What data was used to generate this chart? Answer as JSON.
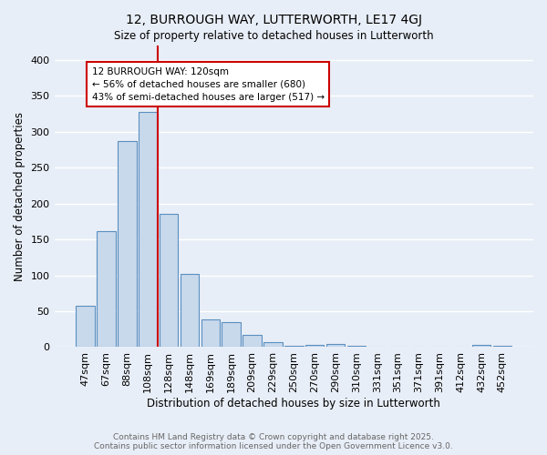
{
  "title": "12, BURROUGH WAY, LUTTERWORTH, LE17 4GJ",
  "subtitle": "Size of property relative to detached houses in Lutterworth",
  "xlabel": "Distribution of detached houses by size in Lutterworth",
  "ylabel": "Number of detached properties",
  "bar_labels": [
    "47sqm",
    "67sqm",
    "88sqm",
    "108sqm",
    "128sqm",
    "148sqm",
    "169sqm",
    "189sqm",
    "209sqm",
    "229sqm",
    "250sqm",
    "270sqm",
    "290sqm",
    "310sqm",
    "331sqm",
    "351sqm",
    "371sqm",
    "391sqm",
    "412sqm",
    "432sqm",
    "452sqm"
  ],
  "bar_values": [
    57,
    162,
    287,
    327,
    185,
    102,
    38,
    35,
    17,
    7,
    2,
    3,
    5,
    2,
    1,
    1,
    1,
    1,
    1,
    3,
    2
  ],
  "bar_color": "#c8d9ec",
  "bar_edge_color": "#5a8fc0",
  "vline_color": "#cc0000",
  "annotation_text": "12 BURROUGH WAY: 120sqm\n← 56% of detached houses are smaller (680)\n43% of semi-detached houses are larger (517) →",
  "annotation_box_color": "white",
  "annotation_box_edge_color": "#cc0000",
  "ylim": [
    0,
    420
  ],
  "yticks": [
    0,
    50,
    100,
    150,
    200,
    250,
    300,
    350,
    400
  ],
  "background_color": "#e8eef7",
  "grid_color": "white",
  "footnote": "Contains HM Land Registry data © Crown copyright and database right 2025.\nContains public sector information licensed under the Open Government Licence v3.0."
}
